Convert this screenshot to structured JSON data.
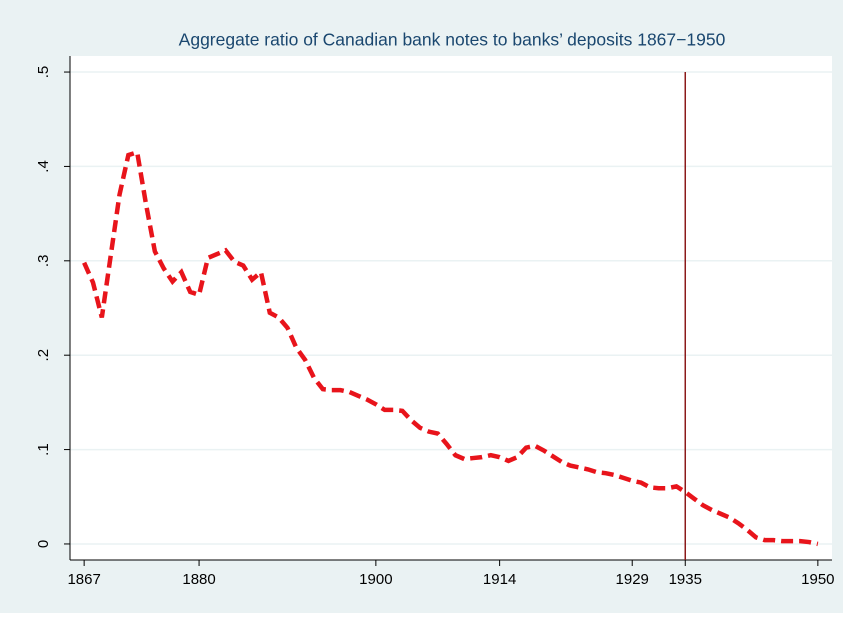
{
  "chart_data": {
    "type": "line",
    "title": "Aggregate ratio of Canadian bank notes to banks’ deposits 1867−1950",
    "x": [
      1867,
      1868,
      1869,
      1870,
      1871,
      1872,
      1873,
      1874,
      1875,
      1876,
      1877,
      1878,
      1879,
      1880,
      1881,
      1882,
      1883,
      1884,
      1885,
      1886,
      1887,
      1888,
      1889,
      1890,
      1891,
      1892,
      1893,
      1894,
      1895,
      1896,
      1897,
      1898,
      1899,
      1900,
      1901,
      1902,
      1903,
      1904,
      1905,
      1906,
      1907,
      1908,
      1909,
      1910,
      1911,
      1912,
      1913,
      1914,
      1915,
      1916,
      1917,
      1918,
      1919,
      1920,
      1921,
      1922,
      1923,
      1924,
      1925,
      1926,
      1927,
      1928,
      1929,
      1930,
      1931,
      1932,
      1933,
      1934,
      1935,
      1936,
      1937,
      1938,
      1939,
      1940,
      1941,
      1942,
      1943,
      1944,
      1945,
      1946,
      1947,
      1948,
      1949,
      1950
    ],
    "values": [
      0.298,
      0.277,
      0.24,
      0.305,
      0.37,
      0.412,
      0.415,
      0.36,
      0.31,
      0.292,
      0.278,
      0.288,
      0.267,
      0.264,
      0.303,
      0.307,
      0.311,
      0.299,
      0.295,
      0.28,
      0.288,
      0.245,
      0.24,
      0.229,
      0.208,
      0.195,
      0.176,
      0.164,
      0.163,
      0.163,
      0.161,
      0.157,
      0.153,
      0.148,
      0.142,
      0.142,
      0.141,
      0.131,
      0.123,
      0.119,
      0.117,
      0.106,
      0.094,
      0.09,
      0.091,
      0.092,
      0.094,
      0.092,
      0.088,
      0.092,
      0.102,
      0.104,
      0.099,
      0.093,
      0.087,
      0.083,
      0.081,
      0.079,
      0.076,
      0.075,
      0.073,
      0.07,
      0.067,
      0.065,
      0.06,
      0.059,
      0.059,
      0.061,
      0.055,
      0.048,
      0.041,
      0.036,
      0.032,
      0.028,
      0.022,
      0.015,
      0.007,
      0.004,
      0.004,
      0.003,
      0.003,
      0.003,
      0.002,
      0
    ],
    "color": "#e8141b",
    "xlim": [
      1865.4,
      1951.6
    ],
    "ylim": [
      -0.017,
      0.517
    ],
    "xticks": [
      1867,
      1880,
      1900,
      1914,
      1929,
      1935,
      1950
    ],
    "yticks": [
      0,
      {
        "value": 0.1,
        "label": ".1"
      },
      {
        "value": 0.2,
        "label": ".2"
      },
      {
        "value": 0.3,
        "label": ".3"
      },
      {
        "value": 0.4,
        "label": ".4"
      },
      {
        "value": 0.5,
        "label": ".5"
      }
    ],
    "grid": true,
    "vline": {
      "x": 1935,
      "color": "#8b1a1a"
    }
  }
}
